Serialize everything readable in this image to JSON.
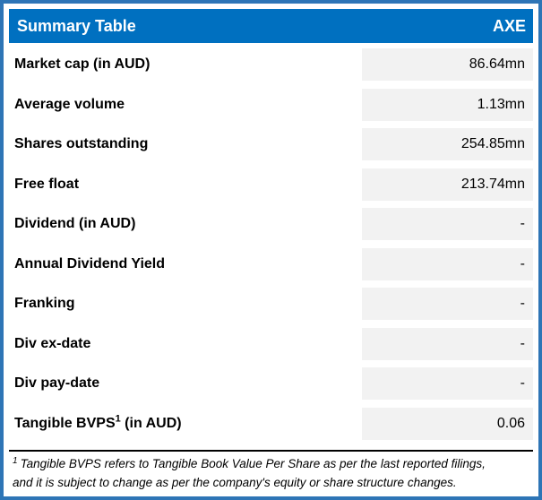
{
  "header": {
    "title": "Summary Table",
    "ticker": "AXE"
  },
  "rows": [
    {
      "label": "Market cap (in AUD)",
      "value": "86.64mn"
    },
    {
      "label": "Average volume",
      "value": "1.13mn"
    },
    {
      "label": "Shares outstanding",
      "value": "254.85mn"
    },
    {
      "label": "Free float",
      "value": "213.74mn"
    },
    {
      "label": "Dividend (in AUD)",
      "value": "-"
    },
    {
      "label": "Annual Dividend Yield",
      "value": "-"
    },
    {
      "label": "Franking",
      "value": "-"
    },
    {
      "label": "Div ex-date",
      "value": "-"
    },
    {
      "label": "Div pay-date",
      "value": "-"
    },
    {
      "label": "Tangible BVPS",
      "sup": "1",
      "suffix": " (in AUD)",
      "value": "0.06"
    }
  ],
  "footnote": {
    "sup": "1",
    "lines": [
      "Tangible BVPS refers to Tangible Book Value Per Share as per the last reported filings,",
      "and it is subject to change as per the company's equity or share structure changes."
    ]
  },
  "colors": {
    "header_bg": "#0070C0",
    "border": "#2E75B6",
    "value_cell_bg": "#F2F2F2",
    "header_text": "#FFFFFF",
    "body_text": "#000000"
  }
}
